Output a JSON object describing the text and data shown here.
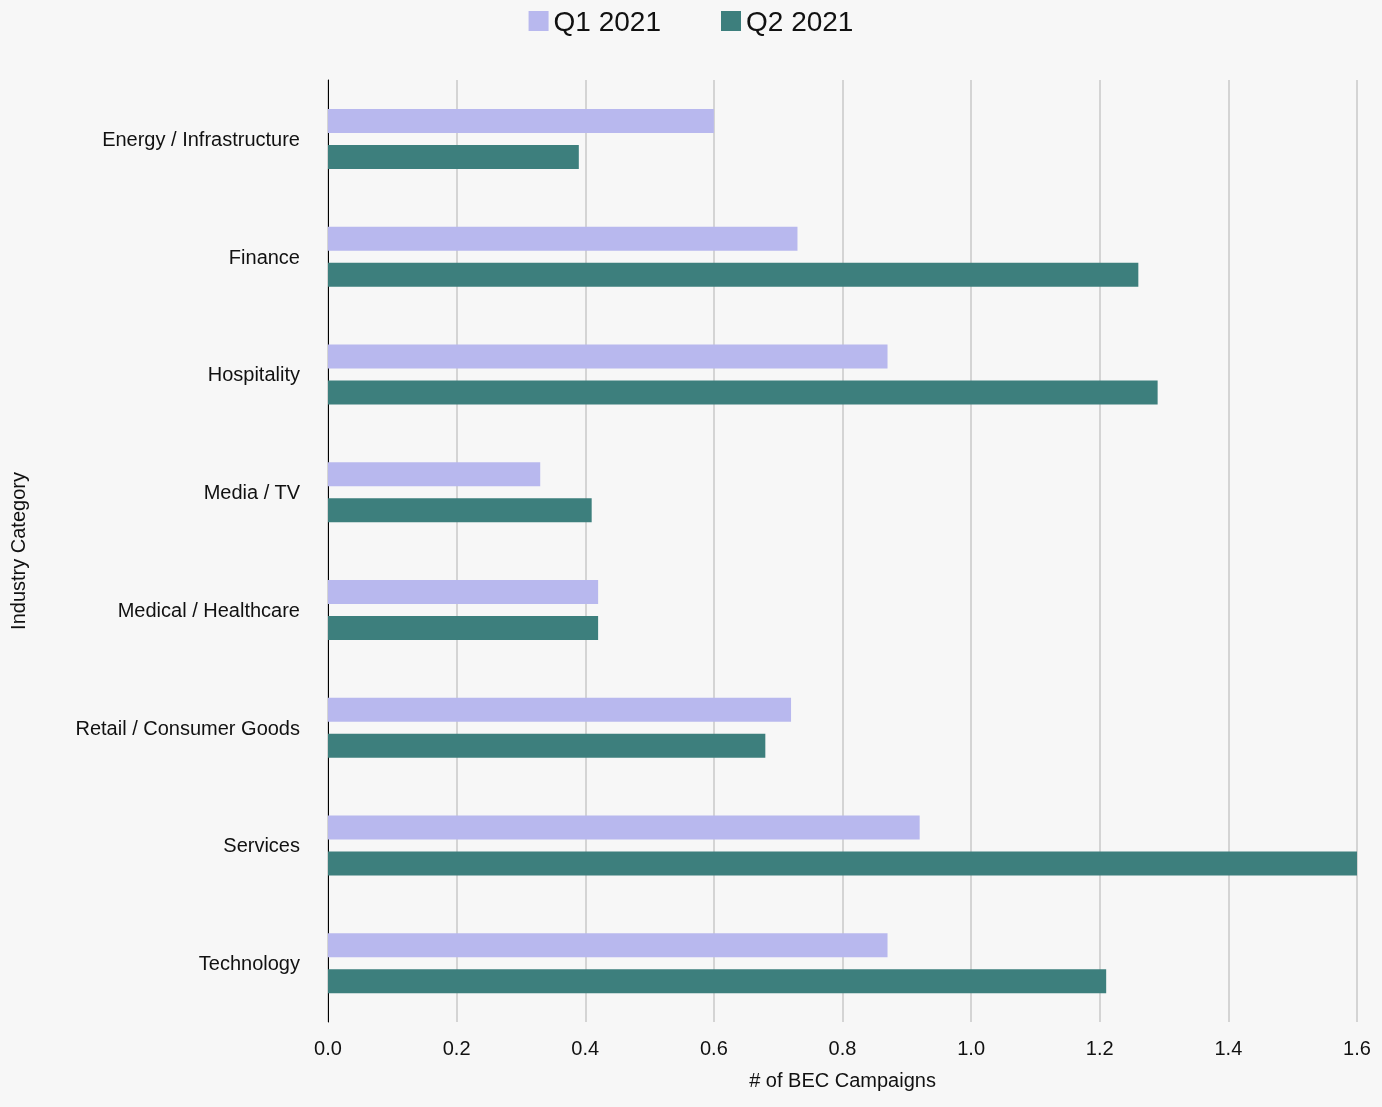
{
  "chart_data": {
    "type": "bar",
    "orientation": "horizontal",
    "xlabel": "# of BEC Campaigns",
    "ylabel": "Industry Category",
    "categories": [
      "Energy / Infrastructure",
      "Finance",
      "Hospitality",
      "Media / TV",
      "Medical / Healthcare",
      "Retail / Consumer Goods",
      "Services",
      "Technology"
    ],
    "series": [
      {
        "name": "Q1 2021",
        "color": "#b8b8ee",
        "values": [
          0.6,
          0.73,
          0.87,
          0.33,
          0.42,
          0.72,
          0.92,
          0.87
        ]
      },
      {
        "name": "Q2 2021",
        "color": "#3d7f7d",
        "values": [
          0.39,
          1.26,
          1.29,
          0.41,
          0.42,
          0.68,
          1.6,
          1.21
        ]
      }
    ],
    "xlim": [
      0,
      1.6
    ],
    "xticks": [
      {
        "value": 0,
        "label": "0.0"
      },
      {
        "value": 0.2,
        "label": "0.2"
      },
      {
        "value": 0.4,
        "label": "0.4"
      },
      {
        "value": 0.6,
        "label": "0.6"
      },
      {
        "value": 0.8,
        "label": "0.8"
      },
      {
        "value": 1.0,
        "label": "1.0"
      },
      {
        "value": 1.2,
        "label": "1.2"
      },
      {
        "value": 1.4,
        "label": "1.4"
      },
      {
        "value": 1.6,
        "label": "1.6"
      }
    ],
    "grid": "x",
    "legend": "top"
  }
}
